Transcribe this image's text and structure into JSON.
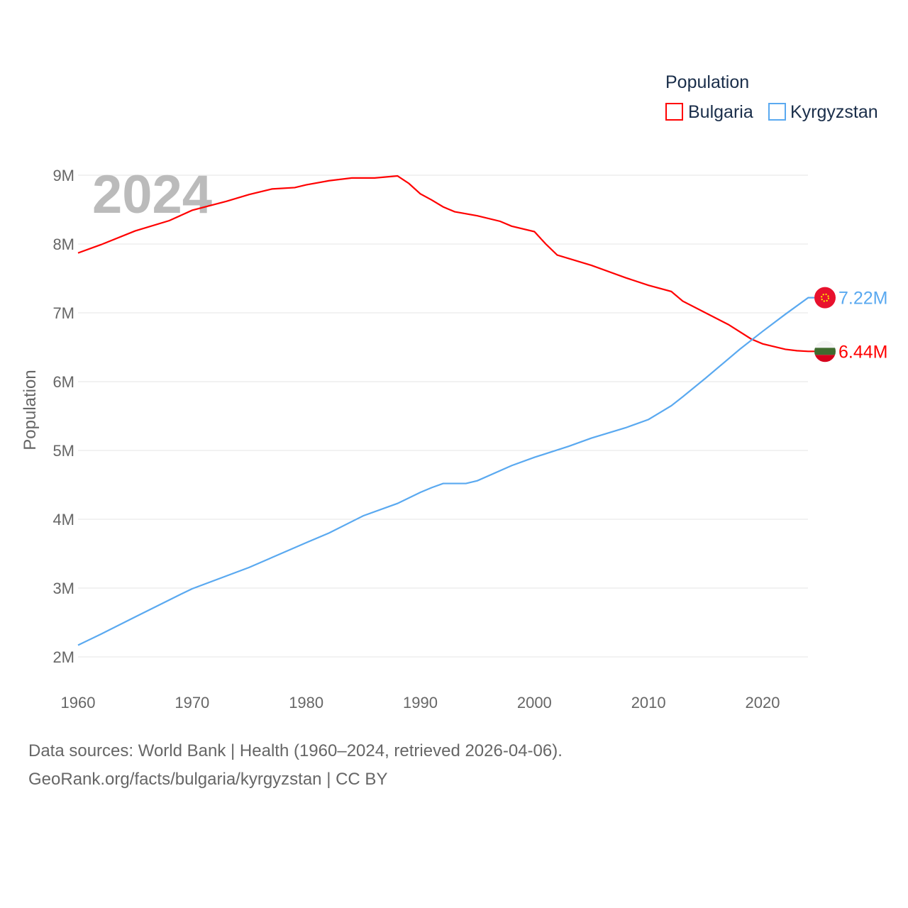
{
  "chart_data": {
    "type": "line",
    "title": "2024",
    "legend_title": "Population",
    "legend_position": "top-right",
    "xlabel": "",
    "ylabel": "Population",
    "xlim": [
      1960,
      2024
    ],
    "ylim": [
      2,
      9
    ],
    "y_unit": "M",
    "grid": true,
    "x_ticks": [
      "1960",
      "1970",
      "1980",
      "1990",
      "2000",
      "2010",
      "2020"
    ],
    "y_ticks": [
      "2M",
      "3M",
      "4M",
      "5M",
      "6M",
      "7M",
      "8M",
      "9M"
    ],
    "series": [
      {
        "name": "Bulgaria",
        "color": "#ff0000",
        "end_label": "6.44M",
        "flag": "bulgaria-flag",
        "x": [
          1960,
          1962,
          1965,
          1968,
          1970,
          1973,
          1975,
          1977,
          1979,
          1980,
          1982,
          1984,
          1986,
          1988,
          1989,
          1990,
          1991,
          1992,
          1993,
          1995,
          1997,
          1998,
          2000,
          2001,
          2002,
          2005,
          2008,
          2010,
          2012,
          2013,
          2015,
          2017,
          2019,
          2020,
          2022,
          2023,
          2024
        ],
        "values": [
          7.87,
          7.99,
          8.19,
          8.34,
          8.49,
          8.62,
          8.72,
          8.8,
          8.82,
          8.86,
          8.92,
          8.96,
          8.96,
          8.99,
          8.88,
          8.73,
          8.64,
          8.54,
          8.47,
          8.41,
          8.33,
          8.26,
          8.18,
          8.0,
          7.84,
          7.69,
          7.51,
          7.4,
          7.31,
          7.17,
          7.0,
          6.83,
          6.62,
          6.55,
          6.47,
          6.45,
          6.44
        ]
      },
      {
        "name": "Kyrgyzstan",
        "color": "#5aa9f0",
        "end_label": "7.22M",
        "flag": "kyrgyzstan-flag",
        "x": [
          1960,
          1962,
          1965,
          1969,
          1970,
          1975,
          1980,
          1982,
          1985,
          1988,
          1990,
          1991,
          1992,
          1994,
          1995,
          1998,
          2000,
          2003,
          2005,
          2008,
          2010,
          2011,
          2012,
          2013,
          2015,
          2018,
          2020,
          2022,
          2024
        ],
        "values": [
          2.17,
          2.33,
          2.58,
          2.91,
          2.99,
          3.3,
          3.66,
          3.8,
          4.05,
          4.23,
          4.39,
          4.46,
          4.52,
          4.52,
          4.56,
          4.78,
          4.9,
          5.06,
          5.18,
          5.33,
          5.45,
          5.55,
          5.65,
          5.78,
          6.05,
          6.47,
          6.73,
          6.98,
          7.22
        ]
      }
    ]
  },
  "footer": {
    "line1": "Data sources: World Bank | Health (1960–2024, retrieved 2026-04-06).",
    "line2": "GeoRank.org/facts/bulgaria/kyrgyzstan | CC BY"
  }
}
